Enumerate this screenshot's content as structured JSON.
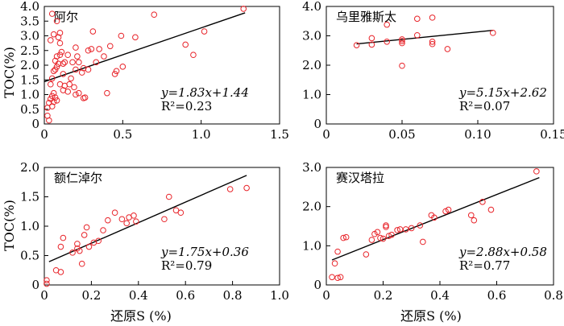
{
  "figure": {
    "xlabel": "还原S (%)",
    "ylabel": "TOC(%)"
  },
  "chart_data": [
    {
      "type": "scatter",
      "title": "阿尔",
      "xlabel": "",
      "ylabel": "TOC(%)",
      "xlim": [
        0,
        1.5
      ],
      "ylim": [
        0,
        4.0
      ],
      "xticks": [
        "0",
        "0.5",
        "1.0",
        "1.5"
      ],
      "yticks": [
        "0",
        "0.5",
        "1.0",
        "1.5",
        "2.0",
        "2.5",
        "3.0",
        "3.5",
        "4.0"
      ],
      "equation": "y=1.83x+1.44",
      "r2": "R²=0.23",
      "fit": {
        "slope": 1.83,
        "intercept": 1.44,
        "x_range": [
          0,
          1.28
        ]
      },
      "marker_color": "#e8242a",
      "points": [
        [
          0.02,
          0.28
        ],
        [
          0.03,
          0.12
        ],
        [
          0.02,
          0.55
        ],
        [
          0.03,
          0.72
        ],
        [
          0.04,
          0.85
        ],
        [
          0.05,
          0.95
        ],
        [
          0.05,
          0.6
        ],
        [
          0.06,
          0.75
        ],
        [
          0.06,
          1.05
        ],
        [
          0.07,
          0.9
        ],
        [
          0.08,
          0.8
        ],
        [
          0.04,
          1.35
        ],
        [
          0.05,
          1.55
        ],
        [
          0.06,
          1.8
        ],
        [
          0.07,
          1.85
        ],
        [
          0.08,
          1.95
        ],
        [
          0.09,
          2.05
        ],
        [
          0.07,
          2.15
        ],
        [
          0.08,
          2.3
        ],
        [
          0.1,
          2.35
        ],
        [
          0.04,
          2.85
        ],
        [
          0.06,
          3.05
        ],
        [
          0.09,
          2.95
        ],
        [
          0.1,
          3.1
        ],
        [
          0.05,
          3.75
        ],
        [
          0.08,
          3.5
        ],
        [
          0.1,
          2.75
        ],
        [
          0.11,
          2.45
        ],
        [
          0.12,
          2.05
        ],
        [
          0.13,
          2.1
        ],
        [
          0.12,
          1.7
        ],
        [
          0.1,
          1.35
        ],
        [
          0.12,
          1.15
        ],
        [
          0.13,
          1.3
        ],
        [
          0.15,
          1.1
        ],
        [
          0.16,
          1.35
        ],
        [
          0.17,
          1.55
        ],
        [
          0.15,
          2.35
        ],
        [
          0.18,
          2.1
        ],
        [
          0.2,
          2.6
        ],
        [
          0.21,
          2.3
        ],
        [
          0.22,
          2.1
        ],
        [
          0.2,
          1.85
        ],
        [
          0.24,
          1.75
        ],
        [
          0.25,
          1.9
        ],
        [
          0.19,
          1.25
        ],
        [
          0.2,
          1.0
        ],
        [
          0.22,
          1.05
        ],
        [
          0.25,
          0.88
        ],
        [
          0.26,
          0.9
        ],
        [
          0.28,
          1.85
        ],
        [
          0.28,
          2.5
        ],
        [
          0.3,
          2.55
        ],
        [
          0.31,
          3.15
        ],
        [
          0.33,
          2.1
        ],
        [
          0.35,
          2.55
        ],
        [
          0.38,
          2.3
        ],
        [
          0.4,
          1.05
        ],
        [
          0.42,
          2.65
        ],
        [
          0.46,
          1.8
        ],
        [
          0.45,
          1.7
        ],
        [
          0.49,
          3.0
        ],
        [
          0.5,
          1.95
        ],
        [
          0.58,
          2.95
        ],
        [
          0.7,
          3.72
        ],
        [
          0.9,
          2.7
        ],
        [
          0.95,
          2.35
        ],
        [
          1.02,
          3.15
        ],
        [
          1.27,
          3.92
        ]
      ]
    },
    {
      "type": "scatter",
      "title": "乌里雅斯太",
      "xlabel": "",
      "ylabel": "",
      "xlim": [
        0,
        0.15
      ],
      "ylim": [
        0,
        4.0
      ],
      "xticks": [
        "0",
        "0.05",
        "0.10",
        "0.15"
      ],
      "yticks": [
        "0",
        "1.0",
        "2.0",
        "3.0",
        "4.0"
      ],
      "equation": "y=5.15x+2.62",
      "r2": "R²=0.07",
      "fit": {
        "slope": 5.15,
        "intercept": 2.62,
        "x_range": [
          0.02,
          0.11
        ]
      },
      "marker_color": "#e8242a",
      "points": [
        [
          0.02,
          2.68
        ],
        [
          0.03,
          2.7
        ],
        [
          0.03,
          2.92
        ],
        [
          0.04,
          2.8
        ],
        [
          0.04,
          3.38
        ],
        [
          0.05,
          2.75
        ],
        [
          0.05,
          2.82
        ],
        [
          0.05,
          2.88
        ],
        [
          0.05,
          1.98
        ],
        [
          0.06,
          3.58
        ],
        [
          0.06,
          3.02
        ],
        [
          0.07,
          3.62
        ],
        [
          0.07,
          2.72
        ],
        [
          0.07,
          2.8
        ],
        [
          0.08,
          2.55
        ],
        [
          0.11,
          3.1
        ]
      ]
    },
    {
      "type": "scatter",
      "title": "额仁淖尔",
      "xlabel": "还原S (%)",
      "ylabel": "TOC(%)",
      "xlim": [
        0,
        1.0
      ],
      "ylim": [
        0,
        2.0
      ],
      "xticks": [
        "0",
        "0.2",
        "0.4",
        "0.6",
        "0.8",
        "1.0"
      ],
      "yticks": [
        "0",
        "0.5",
        "1.0",
        "1.5",
        "2.0"
      ],
      "equation": "y=1.75x+0.36",
      "r2": "R²=0.79",
      "fit": {
        "slope": 1.75,
        "intercept": 0.36,
        "x_range": [
          0.02,
          0.86
        ]
      },
      "marker_color": "#e8242a",
      "points": [
        [
          0.01,
          0.02
        ],
        [
          0.01,
          0.08
        ],
        [
          0.05,
          0.25
        ],
        [
          0.07,
          0.22
        ],
        [
          0.07,
          0.65
        ],
        [
          0.08,
          0.8
        ],
        [
          0.12,
          0.55
        ],
        [
          0.14,
          0.62
        ],
        [
          0.14,
          0.7
        ],
        [
          0.15,
          0.58
        ],
        [
          0.16,
          0.36
        ],
        [
          0.17,
          0.85
        ],
        [
          0.18,
          0.98
        ],
        [
          0.19,
          0.65
        ],
        [
          0.21,
          0.72
        ],
        [
          0.23,
          0.75
        ],
        [
          0.25,
          0.93
        ],
        [
          0.27,
          1.1
        ],
        [
          0.3,
          1.23
        ],
        [
          0.33,
          1.12
        ],
        [
          0.35,
          1.05
        ],
        [
          0.36,
          1.15
        ],
        [
          0.38,
          1.18
        ],
        [
          0.39,
          1.08
        ],
        [
          0.51,
          1.12
        ],
        [
          0.53,
          1.5
        ],
        [
          0.56,
          1.27
        ],
        [
          0.58,
          1.23
        ],
        [
          0.79,
          1.63
        ],
        [
          0.86,
          1.65
        ]
      ]
    },
    {
      "type": "scatter",
      "title": "赛汉塔拉",
      "xlabel": "还原S (%)",
      "ylabel": "",
      "xlim": [
        0,
        0.8
      ],
      "ylim": [
        0,
        3.0
      ],
      "xticks": [
        "0",
        "0.2",
        "0.4",
        "0.6",
        "0.8"
      ],
      "yticks": [
        "0",
        "1.0",
        "2.0",
        "3.0"
      ],
      "equation": "y=2.88x+0.58",
      "r2": "R²=0.77",
      "fit": {
        "slope": 2.88,
        "intercept": 0.58,
        "x_range": [
          0.02,
          0.75
        ]
      },
      "marker_color": "#e8242a",
      "points": [
        [
          0.02,
          0.2
        ],
        [
          0.03,
          0.55
        ],
        [
          0.04,
          0.18
        ],
        [
          0.04,
          0.85
        ],
        [
          0.05,
          0.2
        ],
        [
          0.06,
          1.2
        ],
        [
          0.07,
          1.22
        ],
        [
          0.14,
          0.78
        ],
        [
          0.16,
          1.15
        ],
        [
          0.17,
          1.3
        ],
        [
          0.18,
          1.35
        ],
        [
          0.19,
          1.2
        ],
        [
          0.2,
          1.18
        ],
        [
          0.21,
          1.48
        ],
        [
          0.21,
          1.52
        ],
        [
          0.22,
          1.25
        ],
        [
          0.23,
          1.28
        ],
        [
          0.25,
          1.4
        ],
        [
          0.26,
          1.42
        ],
        [
          0.28,
          1.42
        ],
        [
          0.3,
          1.45
        ],
        [
          0.33,
          1.52
        ],
        [
          0.34,
          1.1
        ],
        [
          0.37,
          1.78
        ],
        [
          0.38,
          1.72
        ],
        [
          0.42,
          1.88
        ],
        [
          0.43,
          1.92
        ],
        [
          0.51,
          1.78
        ],
        [
          0.52,
          1.65
        ],
        [
          0.55,
          2.12
        ],
        [
          0.58,
          1.92
        ],
        [
          0.74,
          2.9
        ]
      ]
    }
  ]
}
